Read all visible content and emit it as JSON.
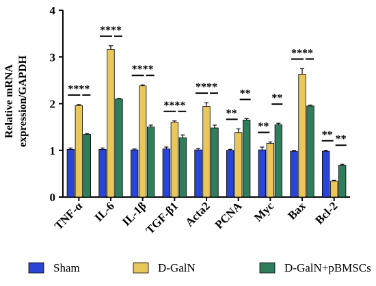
{
  "chart_data": {
    "type": "bar",
    "title": "",
    "xlabel": "",
    "ylabel": [
      "Relative mRNA",
      "expression/GAPDH"
    ],
    "ylim": [
      0,
      4
    ],
    "yticks": [
      "0",
      "1",
      "2",
      "3",
      "4"
    ],
    "categories": [
      "TNF-α",
      "IL-6",
      "IL-1β",
      "TGF-β1",
      "Acta2",
      "PCNA",
      "Myc",
      "Bax",
      "Bcl-2"
    ],
    "series": [
      {
        "name": "Sham",
        "color": "#2a44d4",
        "values": [
          1.02,
          1.02,
          1.01,
          1.03,
          1.01,
          1.0,
          1.01,
          0.98,
          0.98
        ],
        "errors": [
          0.03,
          0.03,
          0.02,
          0.04,
          0.03,
          0.02,
          0.06,
          0.02,
          0.02
        ]
      },
      {
        "name": "D-GalN",
        "color": "#e8c85a",
        "values": [
          1.96,
          3.16,
          2.38,
          1.6,
          1.94,
          1.38,
          1.15,
          2.63,
          0.34
        ],
        "errors": [
          0.02,
          0.08,
          0.02,
          0.03,
          0.08,
          0.08,
          0.03,
          0.12,
          0.02
        ]
      },
      {
        "name": "D-GalN+pBMSCs",
        "color": "#2f7d5a",
        "values": [
          1.34,
          2.1,
          1.5,
          1.27,
          1.48,
          1.65,
          1.55,
          1.95,
          0.68
        ],
        "errors": [
          0.02,
          0.01,
          0.04,
          0.06,
          0.06,
          0.03,
          0.03,
          0.02,
          0.02
        ]
      }
    ],
    "significance": [
      {
        "category": "TNF-α",
        "left": "****",
        "right": "****",
        "shared": true
      },
      {
        "category": "IL-6",
        "left": "****",
        "right": "",
        "shared": true
      },
      {
        "category": "IL-1β",
        "left": "****",
        "right": "",
        "shared": true
      },
      {
        "category": "TGF-β1",
        "left": "****",
        "right": "",
        "shared": true
      },
      {
        "category": "Acta2",
        "left": "****",
        "right": "",
        "shared": true
      },
      {
        "category": "PCNA",
        "left": "**",
        "right": "**",
        "shared": false
      },
      {
        "category": "Myc",
        "left": "**",
        "right": "**",
        "shared": false
      },
      {
        "category": "Bax",
        "left": "****",
        "right": "",
        "shared": true
      },
      {
        "category": "Bcl-2",
        "left": "**",
        "right": "**",
        "shared": false
      }
    ],
    "legend_position": "bottom",
    "grid": false
  }
}
